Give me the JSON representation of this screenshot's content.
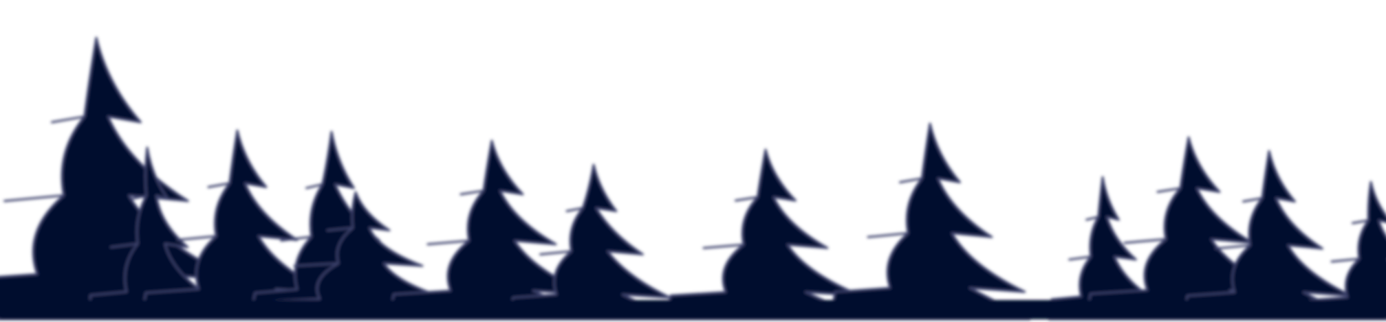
{
  "scene": {
    "description_free": true,
    "colors": {
      "background": "#ffffff",
      "tree_fill": "#02112f",
      "tree_edge": "#3a3f6b"
    },
    "icon": "pine-tree-silhouette",
    "tree_count": 13
  }
}
